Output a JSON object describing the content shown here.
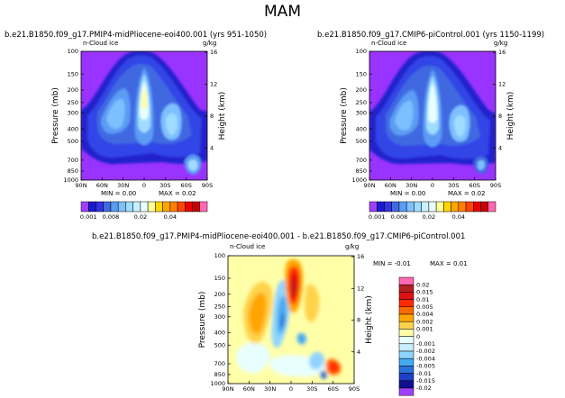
{
  "figure": {
    "season": "MAM",
    "diff_title": "b.e21.B1850.f09_g17.PMIP4-midPliocene-eoi400.001 - b.e21.B1850.f09_g17.CMIP6-piControl.001"
  },
  "panels": [
    {
      "title": "b.e21.B1850.f09_g17.PMIP4-midPliocene-eoi400.001 (yrs 951-1050)",
      "field_label": "n-Cloud ice",
      "units": "g/kg",
      "min_text": "MIN =   0.00",
      "max_text": "MAX =   0.02"
    },
    {
      "title": "b.e21.B1850.f09_g17.CMIP6-piControl.001 (yrs 1150-1199)",
      "field_label": "n-Cloud ice",
      "units": "g/kg",
      "min_text": "MIN =   0.00",
      "max_text": "MAX =   0.02"
    },
    {
      "title": "",
      "field_label": "n-Cloud ice",
      "units": "g/kg",
      "min_text": "MIN =  -0.01",
      "max_text": "MAX =   0.01"
    }
  ],
  "axes": {
    "ylabel": "Pressure (mb)",
    "y2label": "Height (km)",
    "pressure_ticks": [
      "100",
      "150",
      "200",
      "250",
      "300",
      "400",
      "500",
      "700",
      "850",
      "1000"
    ],
    "height_ticks": [
      "16",
      "12",
      "8",
      "4"
    ],
    "lat_ticks": [
      "90N",
      "60N",
      "30N",
      "0",
      "30S",
      "60S",
      "90S"
    ]
  },
  "colorbar_abs": {
    "labels": [
      "0.001",
      "0.008",
      "0.02",
      "0.04"
    ],
    "colors": [
      "#1a1acd",
      "#3333e6",
      "#4169e1",
      "#5b9cf5",
      "#7ec0ff",
      "#a0dcff",
      "#c8f0ff",
      "#e8ffff",
      "#ffff99",
      "#ffd700",
      "#ffa500",
      "#ff7f00",
      "#ff4500",
      "#e60000",
      "#cc0000",
      "#ff69b4"
    ],
    "first_color": "#a040ff"
  },
  "colorbar_diff": {
    "labels": [
      "0.02",
      "0.015",
      "0.01",
      "0.005",
      "0.004",
      "0.002",
      "0.001",
      "0",
      "-0.001",
      "-0.002",
      "-0.004",
      "-0.005",
      "-0.01",
      "-0.015",
      "-0.02"
    ],
    "colors": [
      "#ff69b4",
      "#b22222",
      "#dd1111",
      "#ff2a00",
      "#ff6a00",
      "#ffa500",
      "#ffd24a",
      "#ffffa8",
      "#e8ffff",
      "#c8eeff",
      "#8fd4ff",
      "#45aaf2",
      "#2a72d8",
      "#1e40c8",
      "#101090",
      "#a040ff"
    ]
  },
  "chart_data": [
    {
      "type": "heatmap",
      "title": "b.e21.B1850.f09_g17.PMIP4-midPliocene-eoi400.001 (yrs 951-1050)",
      "variable": "n-Cloud ice",
      "units": "g/kg",
      "x": "latitude (90N to 90S)",
      "y": "pressure (mb, 100 to 1000)",
      "min": 0.0,
      "max": 0.02,
      "features": [
        {
          "lat": 0,
          "pressure": 230,
          "value": 0.02
        },
        {
          "lat": 15,
          "pressure": 320,
          "value": 0.008
        },
        {
          "lat": 45,
          "pressure": 330,
          "value": 0.006
        },
        {
          "lat": -45,
          "pressure": 350,
          "value": 0.006
        },
        {
          "lat": -70,
          "pressure": 800,
          "value": 0.006
        }
      ]
    },
    {
      "type": "heatmap",
      "title": "b.e21.B1850.f09_g17.CMIP6-piControl.001 (yrs 1150-1199)",
      "variable": "n-Cloud ice",
      "units": "g/kg",
      "x": "latitude (90N to 90S)",
      "y": "pressure (mb, 100 to 1000)",
      "min": 0.0,
      "max": 0.02,
      "features": [
        {
          "lat": 0,
          "pressure": 250,
          "value": 0.015
        },
        {
          "lat": 15,
          "pressure": 320,
          "value": 0.008
        },
        {
          "lat": 45,
          "pressure": 330,
          "value": 0.006
        },
        {
          "lat": -45,
          "pressure": 350,
          "value": 0.006
        },
        {
          "lat": -70,
          "pressure": 800,
          "value": 0.004
        }
      ]
    },
    {
      "type": "heatmap",
      "title": "b.e21.B1850.f09_g17.PMIP4-midPliocene-eoi400.001 - b.e21.B1850.f09_g17.CMIP6-piControl.001",
      "variable": "n-Cloud ice",
      "units": "g/kg",
      "x": "latitude (90N to 90S)",
      "y": "pressure (mb, 100 to 1000)",
      "min": -0.01,
      "max": 0.01,
      "features": [
        {
          "lat": 0,
          "pressure": 200,
          "value": 0.01
        },
        {
          "lat": 55,
          "pressure": 380,
          "value": 0.004
        },
        {
          "lat": -30,
          "pressure": 320,
          "value": 0.002
        },
        {
          "lat": 15,
          "pressure": 350,
          "value": -0.005
        },
        {
          "lat": -70,
          "pressure": 800,
          "value": 0.005
        },
        {
          "lat": -60,
          "pressure": 780,
          "value": -0.004
        }
      ]
    }
  ]
}
